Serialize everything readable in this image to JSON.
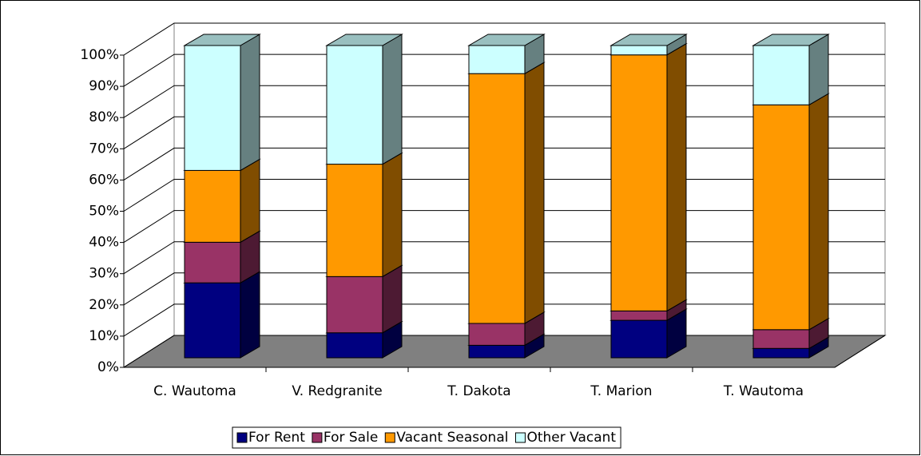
{
  "chart_data": {
    "type": "bar3d_stacked",
    "categories": [
      "C. Wautoma",
      "V. Redgranite",
      "T. Dakota",
      "T. Marion",
      "T. Wautoma"
    ],
    "series": [
      {
        "name": "For Rent",
        "color": "#000080",
        "values": [
          24,
          8,
          4,
          12,
          3
        ]
      },
      {
        "name": "For Sale",
        "color": "#993366",
        "values": [
          13,
          18,
          7,
          3,
          6
        ]
      },
      {
        "name": "Vacant Seasonal",
        "color": "#FF9900",
        "values": [
          23,
          36,
          80,
          82,
          72
        ]
      },
      {
        "name": "Other Vacant",
        "color": "#CCFFFF",
        "values": [
          40,
          38,
          9,
          3,
          19
        ]
      }
    ],
    "ylim": [
      0,
      100
    ],
    "yticks": [
      {
        "value": 0,
        "label": "0%"
      },
      {
        "value": 10,
        "label": "10%"
      },
      {
        "value": 20,
        "label": "20%"
      },
      {
        "value": 30,
        "label": "30%"
      },
      {
        "value": 40,
        "label": "40%"
      },
      {
        "value": 50,
        "label": "50%"
      },
      {
        "value": 60,
        "label": "60%"
      },
      {
        "value": 70,
        "label": "70%"
      },
      {
        "value": 80,
        "label": "80%"
      },
      {
        "value": 90,
        "label": "90%"
      },
      {
        "value": 100,
        "label": "100%"
      }
    ],
    "grid": true,
    "legend": "bottom"
  }
}
